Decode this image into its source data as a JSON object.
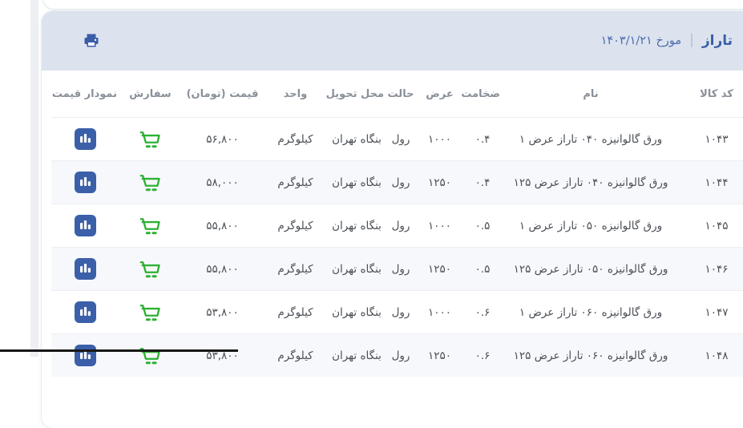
{
  "header": {
    "brand": "تاراز",
    "separator": "|",
    "date": "مورخ ۱۴۰۳/۱/۲۱",
    "print_icon": "printer-icon"
  },
  "table": {
    "columns": [
      {
        "key": "code",
        "label": "کد کالا"
      },
      {
        "key": "name",
        "label": "نام"
      },
      {
        "key": "thickness",
        "label": "ضخامت"
      },
      {
        "key": "width",
        "label": "عرض"
      },
      {
        "key": "state",
        "label": "حالت"
      },
      {
        "key": "delivery",
        "label": "محل تحویل"
      },
      {
        "key": "unit",
        "label": "واحد"
      },
      {
        "key": "price",
        "label": "قیمت (تومان)"
      },
      {
        "key": "order",
        "label": "سفارش"
      },
      {
        "key": "chart",
        "label": "نمودار قیمت"
      }
    ],
    "rows": [
      {
        "code": "۱۰۴۳",
        "name": "ورق گالوانیزه ۰۴۰ تاراز عرض ۱",
        "thickness": "۰.۴",
        "width": "۱۰۰۰",
        "state": "رول",
        "delivery": "بنگاه تهران",
        "unit": "کیلوگرم",
        "price": "۵۶,۸۰۰"
      },
      {
        "code": "۱۰۴۴",
        "name": "ورق گالوانیزه ۰۴۰ تاراز عرض ۱۲۵",
        "thickness": "۰.۴",
        "width": "۱۲۵۰",
        "state": "رول",
        "delivery": "بنگاه تهران",
        "unit": "کیلوگرم",
        "price": "۵۸,۰۰۰"
      },
      {
        "code": "۱۰۴۵",
        "name": "ورق گالوانیزه ۰۵۰ تاراز عرض ۱",
        "thickness": "۰.۵",
        "width": "۱۰۰۰",
        "state": "رول",
        "delivery": "بنگاه تهران",
        "unit": "کیلوگرم",
        "price": "۵۵,۸۰۰"
      },
      {
        "code": "۱۰۴۶",
        "name": "ورق گالوانیزه ۰۵۰ تاراز عرض ۱۲۵",
        "thickness": "۰.۵",
        "width": "۱۲۵۰",
        "state": "رول",
        "delivery": "بنگاه تهران",
        "unit": "کیلوگرم",
        "price": "۵۵,۸۰۰"
      },
      {
        "code": "۱۰۴۷",
        "name": "ورق گالوانیزه ۰۶۰ تاراز عرض ۱",
        "thickness": "۰.۶",
        "width": "۱۰۰۰",
        "state": "رول",
        "delivery": "بنگاه تهران",
        "unit": "کیلوگرم",
        "price": "۵۳,۸۰۰"
      },
      {
        "code": "۱۰۴۸",
        "name": "ورق گالوانیزه ۰۶۰ تاراز عرض ۱۲۵",
        "thickness": "۰.۶",
        "width": "۱۲۵۰",
        "state": "رول",
        "delivery": "بنگاه تهران",
        "unit": "کیلوگرم",
        "price": "۵۳,۸۰۰"
      }
    ],
    "order_icon": "cart-icon",
    "chart_icon": "bar-chart-icon"
  },
  "colors": {
    "accent_blue": "#3a5fa8",
    "card_header_bg": "#dce3ee",
    "cart_green": "#2db134",
    "chart_icon_bg": "#3b5fa9",
    "row_alt_bg": "#f7f8fb"
  }
}
